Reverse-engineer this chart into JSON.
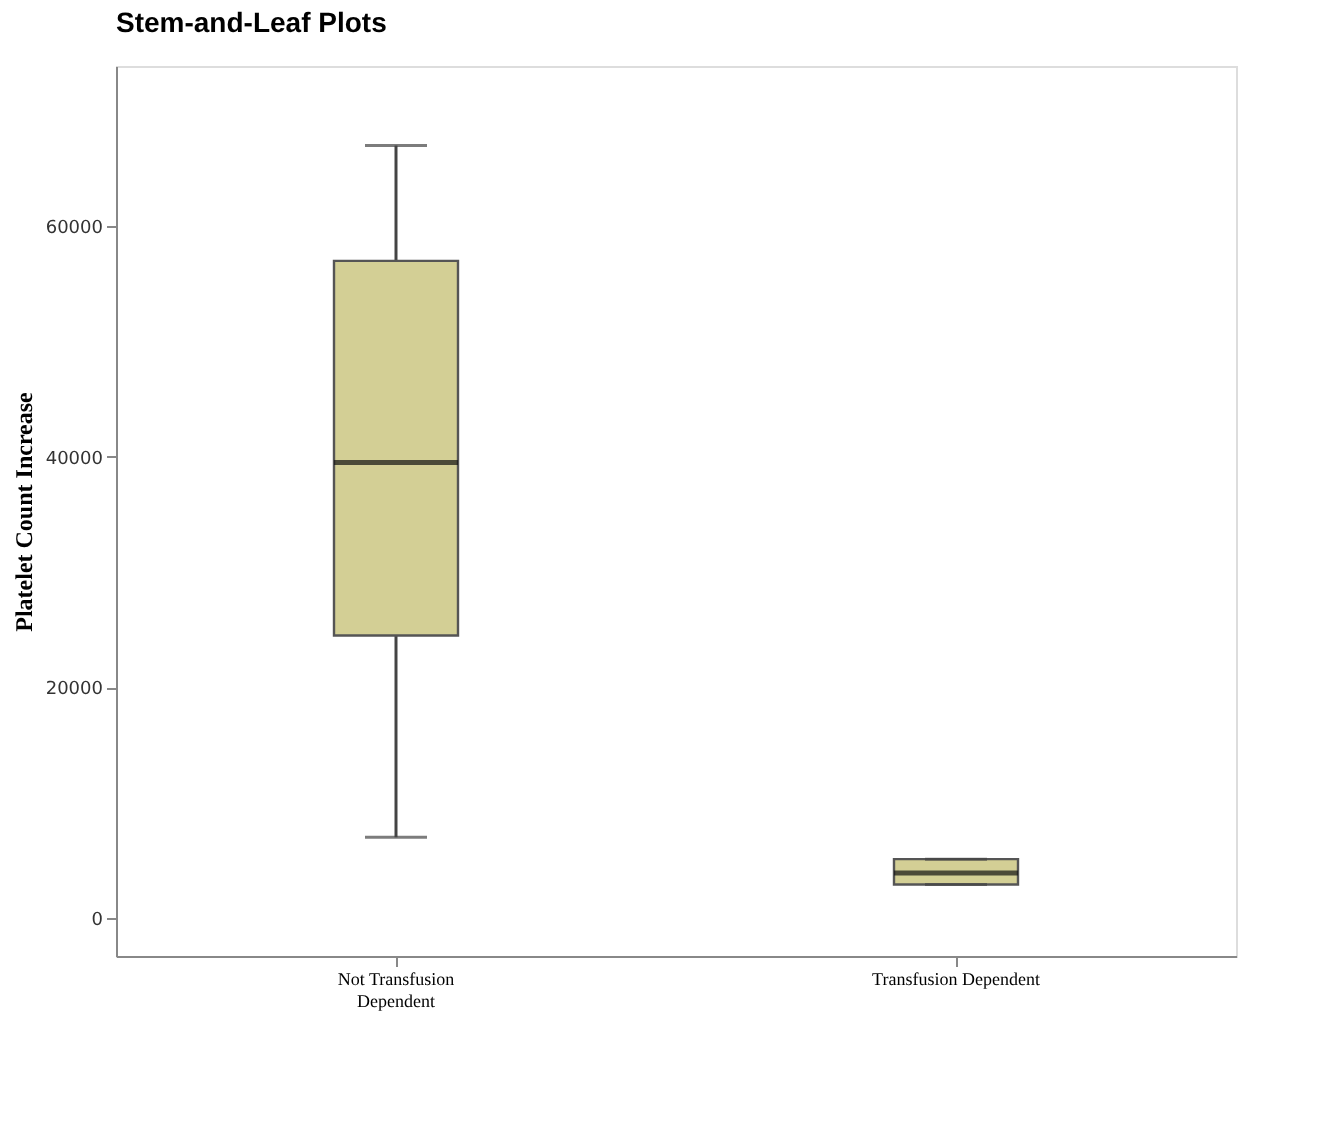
{
  "chart_data": {
    "type": "box",
    "title": "Stem-and-Leaf Plots",
    "ylabel": "Platelet Count Increase",
    "categories": [
      "Not Transfusion\nDependent",
      "Transfusion Dependent"
    ],
    "boxes": [
      {
        "low": 7000,
        "q1": 24500,
        "median": 39500,
        "q3": 57000,
        "high": 67000
      },
      {
        "low": 2900,
        "q1": 2900,
        "median": 3900,
        "q3": 5100,
        "high": 5100
      }
    ],
    "color": "#d3cf95",
    "ylim": [
      -3300,
      73900
    ],
    "yticks": [
      0,
      20000,
      40000,
      60000
    ],
    "grid": false
  }
}
